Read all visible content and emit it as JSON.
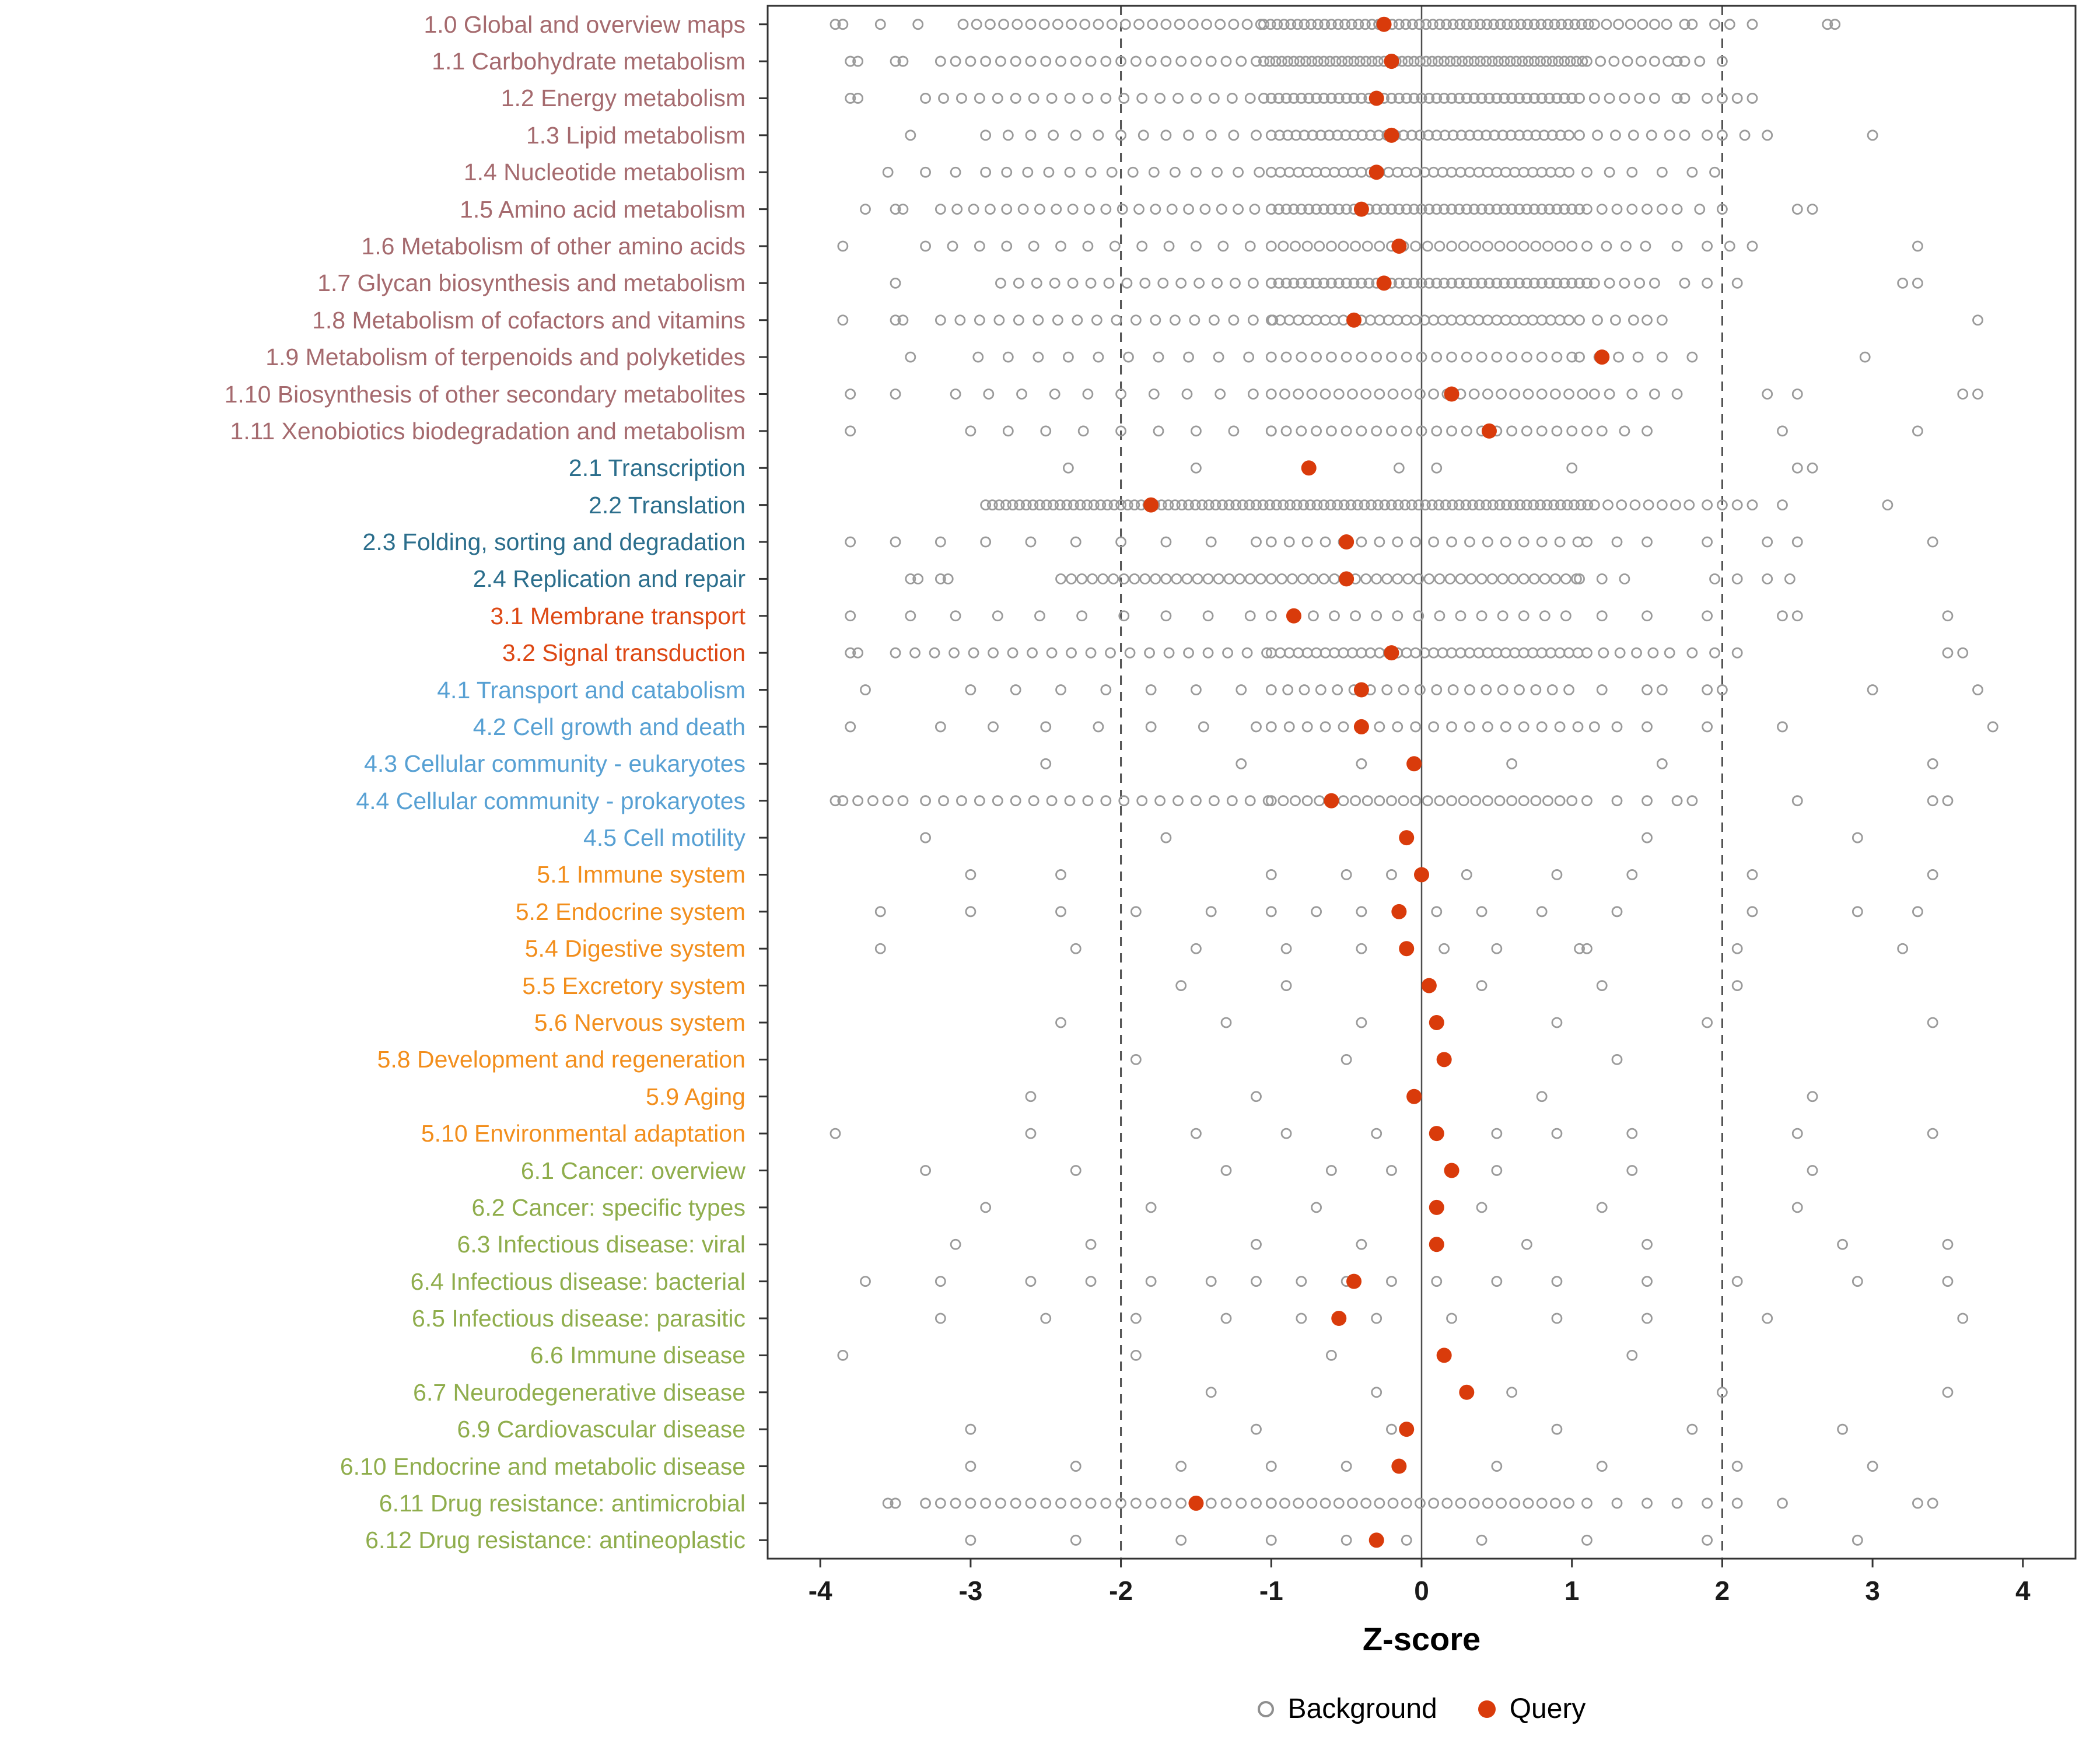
{
  "chart_data": {
    "type": "scatter",
    "variant": "strip-dot-plot",
    "xlabel": "Z-score",
    "xlim": [
      -4.35,
      4.35
    ],
    "x_ticks": [
      -4,
      -3,
      -2,
      -1,
      0,
      1,
      2,
      3,
      4
    ],
    "reference_lines": {
      "solid": [
        0
      ],
      "dashed": [
        -2,
        2
      ]
    },
    "grid": "off",
    "legend_position": "bottom",
    "legend": [
      {
        "label": "Background",
        "type": "open"
      },
      {
        "label": "Query",
        "type": "filled"
      }
    ],
    "colors": {
      "background_point": "#9a9a9a",
      "query_point": "#d93b0b",
      "axis": "#333333",
      "ref_line": "#4d4d4d",
      "panel_border": "#333333"
    },
    "group_colors": {
      "1": "#a56a6e",
      "2": "#2b6e8c",
      "3": "#dd4814",
      "4": "#57a0d3",
      "5": "#f28e1c",
      "6": "#8fad4c"
    },
    "rows": [
      {
        "label": "1.0 Global and overview maps",
        "query": -0.25,
        "background": [
          -3.9,
          -3.85,
          -3.6,
          -3.35,
          [
            -3.05,
            -1.1,
            0.09
          ],
          [
            -1.05,
            1.1,
            0.045
          ],
          [
            1.15,
            1.65,
            0.08
          ],
          1.75,
          1.8,
          1.95,
          2.05,
          2.2,
          2.7,
          2.75
        ]
      },
      {
        "label": "1.1 Carbohydrate metabolism",
        "query": -0.2,
        "background": [
          -3.8,
          -3.75,
          -3.5,
          -3.45,
          [
            -3.2,
            -1.1,
            0.1
          ],
          [
            -1.05,
            1.05,
            0.04
          ],
          [
            1.1,
            1.6,
            0.09
          ],
          1.7,
          1.75,
          1.85,
          2.0
        ]
      },
      {
        "label": "1.2 Energy metabolism",
        "query": -0.3,
        "background": [
          -3.8,
          -3.75,
          [
            -3.3,
            -1.1,
            0.12
          ],
          [
            -1.05,
            1.0,
            0.05
          ],
          [
            1.05,
            1.55,
            0.1
          ],
          1.7,
          1.75,
          1.9,
          2.0,
          2.1,
          2.2
        ]
      },
      {
        "label": "1.3 Lipid metabolism",
        "query": -0.2,
        "background": [
          -3.4,
          [
            -2.9,
            -1.05,
            0.15
          ],
          [
            -1.0,
            1.0,
            0.055
          ],
          [
            1.05,
            1.6,
            0.12
          ],
          1.75,
          1.9,
          2.0,
          2.15,
          2.3,
          3.0
        ]
      },
      {
        "label": "1.4 Nucleotide metabolism",
        "query": -0.3,
        "background": [
          -3.55,
          -3.3,
          -3.1,
          [
            -2.9,
            -1.05,
            0.14
          ],
          [
            -1.0,
            1.0,
            0.06
          ],
          [
            1.1,
            1.45,
            0.15
          ],
          1.6,
          1.8,
          1.95
        ]
      },
      {
        "label": "1.5 Amino acid metabolism",
        "query": -0.4,
        "background": [
          -3.7,
          -3.5,
          -3.45,
          [
            -3.2,
            -1.05,
            0.11
          ],
          [
            -1.0,
            1.05,
            0.05
          ],
          [
            1.1,
            1.6,
            0.1
          ],
          1.7,
          1.85,
          2.0,
          2.5,
          2.6
        ]
      },
      {
        "label": "1.6 Metabolism of other amino acids",
        "query": -0.15,
        "background": [
          -3.85,
          [
            -3.3,
            -1.1,
            0.18
          ],
          [
            -1.0,
            1.0,
            0.08
          ],
          [
            1.1,
            1.55,
            0.13
          ],
          1.7,
          1.9,
          2.05,
          2.2,
          3.3
        ]
      },
      {
        "label": "1.7 Glycan biosynthesis and metabolism",
        "query": -0.25,
        "background": [
          -3.5,
          [
            -2.8,
            -1.05,
            0.12
          ],
          [
            -1.0,
            1.1,
            0.05
          ],
          [
            1.15,
            1.55,
            0.1
          ],
          1.75,
          1.9,
          2.1,
          3.2,
          3.3
        ]
      },
      {
        "label": "1.8 Metabolism of cofactors and vitamins",
        "query": -0.45,
        "background": [
          -3.85,
          -3.5,
          -3.45,
          [
            -3.2,
            -1.05,
            0.13
          ],
          [
            -1.0,
            1.0,
            0.06
          ],
          [
            1.05,
            1.4,
            0.12
          ],
          1.5,
          1.6,
          3.7
        ]
      },
      {
        "label": "1.9 Metabolism of terpenoids and polyketides",
        "query": 1.2,
        "background": [
          -3.4,
          [
            -2.95,
            -1.1,
            0.2
          ],
          [
            -1.0,
            1.0,
            0.1
          ],
          [
            1.05,
            1.45,
            0.13
          ],
          1.6,
          1.8,
          2.95
        ]
      },
      {
        "label": "1.10 Biosynthesis of other secondary metabolites",
        "query": 0.2,
        "background": [
          -3.8,
          -3.5,
          [
            -3.1,
            -1.1,
            0.22
          ],
          [
            -1.0,
            1.05,
            0.09
          ],
          1.15,
          1.25,
          1.4,
          1.55,
          1.7,
          2.3,
          2.5,
          3.6,
          3.7
        ]
      },
      {
        "label": "1.11 Xenobiotics biodegradation and metabolism",
        "query": 0.45,
        "background": [
          -3.8,
          [
            -3.0,
            -1.1,
            0.25
          ],
          [
            -1.0,
            1.0,
            0.1
          ],
          1.1,
          1.2,
          1.35,
          1.5,
          2.4,
          3.3
        ]
      },
      {
        "label": "2.1 Transcription",
        "query": -0.75,
        "background": [
          -2.35,
          -1.5,
          -0.15,
          0.1,
          1.0,
          2.5,
          2.6
        ]
      },
      {
        "label": "2.2 Translation",
        "query": -1.8,
        "background": [
          [
            -2.9,
            1.1,
            0.045
          ],
          [
            1.15,
            1.8,
            0.09
          ],
          1.9,
          2.0,
          2.1,
          2.2,
          2.4,
          3.1
        ]
      },
      {
        "label": "2.3 Folding, sorting and degradation",
        "query": -0.5,
        "background": [
          -3.8,
          -3.5,
          [
            -3.2,
            -1.1,
            0.3
          ],
          [
            -1.0,
            1.0,
            0.12
          ],
          1.1,
          1.3,
          1.5,
          1.9,
          2.3,
          2.5,
          3.4
        ]
      },
      {
        "label": "2.4 Replication and repair",
        "query": -0.5,
        "background": [
          -3.4,
          -3.35,
          -3.2,
          -3.15,
          [
            -2.4,
            1.0,
            0.07
          ],
          [
            1.05,
            1.35,
            0.15
          ],
          1.95,
          2.1,
          2.3,
          2.45
        ]
      },
      {
        "label": "3.1 Membrane transport",
        "query": -0.85,
        "background": [
          -3.8,
          -3.4,
          [
            -3.1,
            -1.1,
            0.28
          ],
          [
            -1.0,
            1.0,
            0.14
          ],
          1.2,
          1.5,
          1.9,
          2.4,
          2.5,
          3.5
        ]
      },
      {
        "label": "3.2 Signal transduction",
        "query": -0.2,
        "background": [
          -3.8,
          -3.75,
          [
            -3.5,
            -1.05,
            0.13
          ],
          [
            -1.0,
            1.05,
            0.06
          ],
          [
            1.1,
            1.6,
            0.11
          ],
          1.8,
          1.95,
          2.1,
          3.5,
          3.6
        ]
      },
      {
        "label": "4.1 Transport and catabolism",
        "query": -0.4,
        "background": [
          -3.7,
          [
            -3.0,
            -1.1,
            0.3
          ],
          [
            -1.0,
            1.0,
            0.11
          ],
          1.2,
          1.5,
          1.6,
          1.9,
          2.0,
          3.0,
          3.7
        ]
      },
      {
        "label": "4.2 Cell growth and death",
        "query": -0.4,
        "background": [
          -3.8,
          [
            -3.2,
            -1.1,
            0.35
          ],
          [
            -1.0,
            1.0,
            0.12
          ],
          1.15,
          1.3,
          1.5,
          1.9,
          2.4,
          3.8
        ]
      },
      {
        "label": "4.3 Cellular community - eukaryotes",
        "query": -0.05,
        "background": [
          -2.5,
          -1.2,
          -0.4,
          0.6,
          1.6,
          3.4
        ]
      },
      {
        "label": "4.4 Cellular community - prokaryotes",
        "query": -0.6,
        "background": [
          -3.9,
          -3.85,
          -3.75,
          -3.65,
          -3.55,
          -3.45,
          [
            -3.3,
            -1.05,
            0.12
          ],
          [
            -1.0,
            1.0,
            0.08
          ],
          1.1,
          1.3,
          1.5,
          1.7,
          1.8,
          2.5,
          3.4,
          3.5
        ]
      },
      {
        "label": "4.5 Cell motility",
        "query": -0.1,
        "background": [
          -3.3,
          -1.7,
          1.5,
          2.9
        ]
      },
      {
        "label": "5.1 Immune system",
        "query": 0.0,
        "background": [
          -3.0,
          -2.4,
          -1.0,
          -0.5,
          -0.2,
          0.3,
          0.9,
          1.4,
          2.2,
          3.4
        ]
      },
      {
        "label": "5.2 Endocrine system",
        "query": -0.15,
        "background": [
          -3.6,
          -3.0,
          -2.4,
          -1.9,
          -1.4,
          -1.0,
          -0.7,
          -0.4,
          0.1,
          0.4,
          0.8,
          1.3,
          2.2,
          2.9,
          3.3
        ]
      },
      {
        "label": "5.4 Digestive system",
        "query": -0.1,
        "background": [
          -3.6,
          -2.3,
          -1.5,
          -0.9,
          -0.4,
          0.15,
          0.5,
          1.05,
          1.1,
          2.1,
          3.2
        ]
      },
      {
        "label": "5.5 Excretory system",
        "query": 0.05,
        "background": [
          -1.6,
          -0.9,
          0.4,
          1.2,
          2.1
        ]
      },
      {
        "label": "5.6 Nervous system",
        "query": 0.1,
        "background": [
          -2.4,
          -1.3,
          -0.4,
          0.9,
          1.9,
          3.4
        ]
      },
      {
        "label": "5.8 Development and regeneration",
        "query": 0.15,
        "background": [
          -1.9,
          -0.5,
          1.3
        ]
      },
      {
        "label": "5.9 Aging",
        "query": -0.05,
        "background": [
          -2.6,
          -1.1,
          0.8,
          2.6
        ]
      },
      {
        "label": "5.10 Environmental adaptation",
        "query": 0.1,
        "background": [
          -3.9,
          -2.6,
          -1.5,
          -0.9,
          -0.3,
          0.5,
          0.9,
          1.4,
          2.5,
          3.4
        ]
      },
      {
        "label": "6.1 Cancer: overview",
        "query": 0.2,
        "background": [
          -3.3,
          -2.3,
          -1.3,
          -0.6,
          -0.2,
          0.5,
          1.4,
          2.6
        ]
      },
      {
        "label": "6.2 Cancer: specific types",
        "query": 0.1,
        "background": [
          -2.9,
          -1.8,
          -0.7,
          0.4,
          1.2,
          2.5
        ]
      },
      {
        "label": "6.3 Infectious disease: viral",
        "query": 0.1,
        "background": [
          -3.1,
          -2.2,
          -1.1,
          -0.4,
          0.7,
          1.5,
          2.8,
          3.5
        ]
      },
      {
        "label": "6.4 Infectious disease: bacterial",
        "query": -0.45,
        "background": [
          -3.7,
          -3.2,
          -2.6,
          -2.2,
          -1.8,
          -1.4,
          -1.1,
          -0.8,
          -0.5,
          -0.2,
          0.1,
          0.5,
          0.9,
          1.5,
          2.1,
          2.9,
          3.5
        ]
      },
      {
        "label": "6.5 Infectious disease: parasitic",
        "query": -0.55,
        "background": [
          -3.2,
          -2.5,
          -1.9,
          -1.3,
          -0.8,
          -0.3,
          0.2,
          0.9,
          1.5,
          2.3,
          3.6
        ]
      },
      {
        "label": "6.6 Immune disease",
        "query": 0.15,
        "background": [
          -3.85,
          -1.9,
          -0.6,
          1.4
        ]
      },
      {
        "label": "6.7 Neurodegenerative disease",
        "query": 0.3,
        "background": [
          -1.4,
          -0.3,
          0.6,
          2.0,
          3.5
        ]
      },
      {
        "label": "6.9 Cardiovascular disease",
        "query": -0.1,
        "background": [
          -3.0,
          -1.1,
          -0.2,
          0.9,
          1.8,
          2.8
        ]
      },
      {
        "label": "6.10 Endocrine and metabolic disease",
        "query": -0.15,
        "background": [
          -3.0,
          -2.3,
          -1.6,
          -1.0,
          -0.5,
          0.5,
          1.2,
          2.1,
          3.0
        ]
      },
      {
        "label": "6.11 Drug resistance: antimicrobial",
        "query": -1.5,
        "background": [
          -3.55,
          -3.5,
          [
            -3.3,
            -1.05,
            0.1
          ],
          [
            -1.0,
            1.0,
            0.09
          ],
          1.1,
          1.3,
          1.5,
          1.7,
          1.9,
          2.1,
          2.4,
          3.3,
          3.4
        ]
      },
      {
        "label": "6.12 Drug resistance: antineoplastic",
        "query": -0.3,
        "background": [
          -3.0,
          -2.3,
          -1.6,
          -1.0,
          -0.5,
          -0.1,
          0.4,
          1.1,
          1.9,
          2.9
        ]
      }
    ]
  }
}
